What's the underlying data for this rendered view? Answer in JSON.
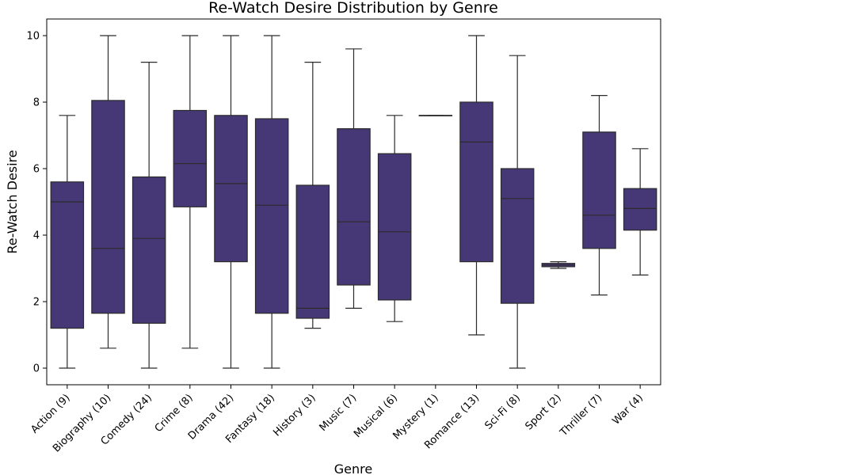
{
  "chart_data": {
    "type": "box",
    "title": "Re-Watch Desire Distribution by Genre",
    "xlabel": "Genre",
    "ylabel": "Re-Watch Desire",
    "ylim": [
      -0.5,
      10.5
    ],
    "yticks": [
      0,
      2,
      4,
      6,
      8,
      10
    ],
    "grid": false,
    "box_color": "#463876",
    "line_color": "#2b2b2b",
    "categories": [
      "Action (9)",
      "Biography (10)",
      "Comedy (24)",
      "Crime (8)",
      "Drama (42)",
      "Fantasy (18)",
      "History (3)",
      "Music (7)",
      "Musical (6)",
      "Mystery (1)",
      "Romance (13)",
      "Sci-Fi (8)",
      "Sport (2)",
      "Thriller (7)",
      "War (4)"
    ],
    "boxes": [
      {
        "whislo": 0.0,
        "q1": 1.2,
        "med": 5.0,
        "q3": 5.6,
        "whishi": 7.6
      },
      {
        "whislo": 0.6,
        "q1": 1.65,
        "med": 3.6,
        "q3": 8.05,
        "whishi": 10.0
      },
      {
        "whislo": 0.0,
        "q1": 1.35,
        "med": 3.9,
        "q3": 5.75,
        "whishi": 9.2
      },
      {
        "whislo": 0.6,
        "q1": 4.85,
        "med": 6.15,
        "q3": 7.75,
        "whishi": 10.0
      },
      {
        "whislo": 0.0,
        "q1": 3.2,
        "med": 5.55,
        "q3": 7.6,
        "whishi": 10.0
      },
      {
        "whislo": 0.0,
        "q1": 1.65,
        "med": 4.9,
        "q3": 7.5,
        "whishi": 10.0
      },
      {
        "whislo": 1.2,
        "q1": 1.5,
        "med": 1.8,
        "q3": 5.5,
        "whishi": 9.2
      },
      {
        "whislo": 1.8,
        "q1": 2.5,
        "med": 4.4,
        "q3": 7.2,
        "whishi": 9.6
      },
      {
        "whislo": 1.4,
        "q1": 2.05,
        "med": 4.1,
        "q3": 6.45,
        "whishi": 7.6
      },
      {
        "whislo": 7.6,
        "q1": 7.6,
        "med": 7.6,
        "q3": 7.6,
        "whishi": 7.6
      },
      {
        "whislo": 1.0,
        "q1": 3.2,
        "med": 6.8,
        "q3": 8.0,
        "whishi": 10.0
      },
      {
        "whislo": 0.0,
        "q1": 1.95,
        "med": 5.1,
        "q3": 6.0,
        "whishi": 9.4
      },
      {
        "whislo": 3.0,
        "q1": 3.05,
        "med": 3.1,
        "q3": 3.15,
        "whishi": 3.2
      },
      {
        "whislo": 2.2,
        "q1": 3.6,
        "med": 4.6,
        "q3": 7.1,
        "whishi": 8.2
      },
      {
        "whislo": 2.8,
        "q1": 4.15,
        "med": 4.8,
        "q3": 5.4,
        "whishi": 6.6
      }
    ]
  }
}
